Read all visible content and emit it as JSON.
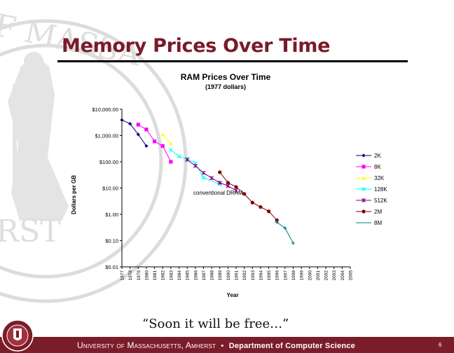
{
  "slide": {
    "title": "Memory Prices Over Time",
    "quote": "“Soon it will be free…”",
    "footer": {
      "university": "University of Massachusetts, Amherst",
      "separator": "•",
      "department": "Department of Computer Science"
    },
    "page_number": "6",
    "seal_letters": "F MASSA RST",
    "colors": {
      "title": "#7a1a28",
      "footer": "#7b1c2a"
    }
  },
  "chart_data": {
    "type": "line",
    "title": "RAM Prices Over Time",
    "subtitle": "(1977 dollars)",
    "xlabel": "Year",
    "ylabel": "Dollars per GB",
    "y_scale": "log",
    "ylim": [
      0.01,
      10000
    ],
    "y_ticks": [
      10000,
      1000,
      100,
      10,
      1,
      0.1,
      0.01
    ],
    "y_tick_labels": [
      "$10,000.00",
      "$1,000.00",
      "$100.00",
      "$10.00",
      "$1.00",
      "$0.10",
      "$0.01"
    ],
    "x_ticks": [
      1977,
      1978,
      1979,
      1980,
      1981,
      1982,
      1983,
      1984,
      1985,
      1986,
      1987,
      1988,
      1989,
      1990,
      1991,
      1992,
      1993,
      1994,
      1995,
      1996,
      1997,
      1998,
      1999,
      2000,
      2001,
      2002,
      2003,
      2004,
      2005
    ],
    "annotation": "conventional DRAM",
    "legend_position": "right",
    "series": [
      {
        "name": "2K",
        "color": "#000080",
        "marker": "diamond",
        "x": [
          1977,
          1978,
          1979,
          1980
        ],
        "y": [
          3900,
          2800,
          1100,
          400
        ]
      },
      {
        "name": "8K",
        "color": "#ff00ff",
        "marker": "square",
        "x": [
          1979,
          1980,
          1981,
          1982,
          1983
        ],
        "y": [
          2600,
          1700,
          600,
          400,
          100
        ]
      },
      {
        "name": "32K",
        "color": "#ffff00",
        "marker": "triangle",
        "x": [
          1982,
          1983
        ],
        "y": [
          1100,
          500
        ]
      },
      {
        "name": "128K",
        "color": "#00ffff",
        "marker": "x",
        "x": [
          1983,
          1984,
          1985,
          1986,
          1987,
          1989
        ],
        "y": [
          280,
          160,
          130,
          90,
          25,
          14
        ]
      },
      {
        "name": "512K",
        "color": "#800080",
        "marker": "star",
        "x": [
          1985,
          1986,
          1987,
          1988,
          1989,
          1990,
          1991
        ],
        "y": [
          120,
          70,
          38,
          24,
          16,
          12,
          8
        ]
      },
      {
        "name": "2M",
        "color": "#800000",
        "marker": "circle",
        "x": [
          1989,
          1990,
          1991,
          1992,
          1993,
          1994,
          1995,
          1996
        ],
        "y": [
          40,
          16,
          11,
          6,
          2.8,
          1.9,
          1.3,
          0.6
        ]
      },
      {
        "name": "8M",
        "color": "#008080",
        "marker": "plus",
        "x": [
          1996,
          1997,
          1998
        ],
        "y": [
          0.5,
          0.3,
          0.08
        ]
      }
    ]
  }
}
